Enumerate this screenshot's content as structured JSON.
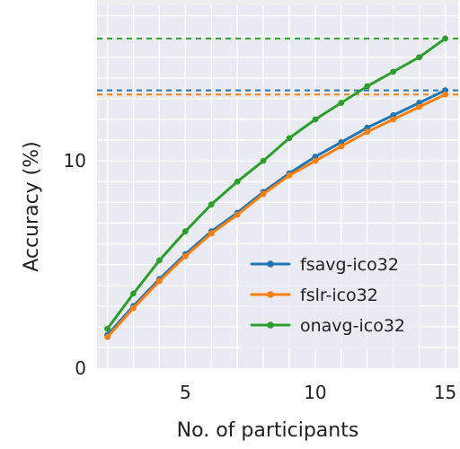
{
  "chart_data": {
    "type": "line",
    "title": "",
    "xlabel": "No. of participants",
    "ylabel": "Accuracy (%)",
    "xlim": [
      1.6,
      15.5
    ],
    "ylim": [
      0,
      17.5
    ],
    "x_ticks": [
      5,
      10,
      15
    ],
    "y_ticks": [
      0,
      10
    ],
    "grid": true,
    "legend_position": "bottom-right",
    "background": "#eaeaf2",
    "series": [
      {
        "name": "fsavg-ico32",
        "color": "#1f77b4",
        "x": [
          2,
          3,
          4,
          5,
          6,
          7,
          8,
          9,
          10,
          11,
          12,
          13,
          14,
          15
        ],
        "y": [
          1.6,
          3.0,
          4.3,
          5.5,
          6.6,
          7.5,
          8.5,
          9.4,
          10.2,
          10.9,
          11.6,
          12.2,
          12.8,
          13.4
        ]
      },
      {
        "name": "fslr-ico32",
        "color": "#ff7f0e",
        "x": [
          2,
          3,
          4,
          5,
          6,
          7,
          8,
          9,
          10,
          11,
          12,
          13,
          14,
          15
        ],
        "y": [
          1.5,
          2.9,
          4.2,
          5.4,
          6.5,
          7.4,
          8.4,
          9.3,
          10.0,
          10.7,
          11.4,
          12.0,
          12.6,
          13.2
        ]
      },
      {
        "name": "onavg-ico32",
        "color": "#2ca02c",
        "x": [
          2,
          3,
          4,
          5,
          6,
          7,
          8,
          9,
          10,
          11,
          12,
          13,
          14,
          15
        ],
        "y": [
          1.9,
          3.6,
          5.2,
          6.6,
          7.9,
          9.0,
          10.0,
          11.1,
          12.0,
          12.8,
          13.6,
          14.3,
          15.0,
          15.9
        ]
      }
    ],
    "reference_lines": [
      {
        "series": "onavg-ico32",
        "y": 15.9,
        "color": "#2ca02c",
        "style": "dashed"
      },
      {
        "series": "fsavg-ico32",
        "y": 13.4,
        "color": "#1f77b4",
        "style": "dashed"
      },
      {
        "series": "fslr-ico32",
        "y": 13.2,
        "color": "#ff7f0e",
        "style": "dashed"
      }
    ]
  }
}
